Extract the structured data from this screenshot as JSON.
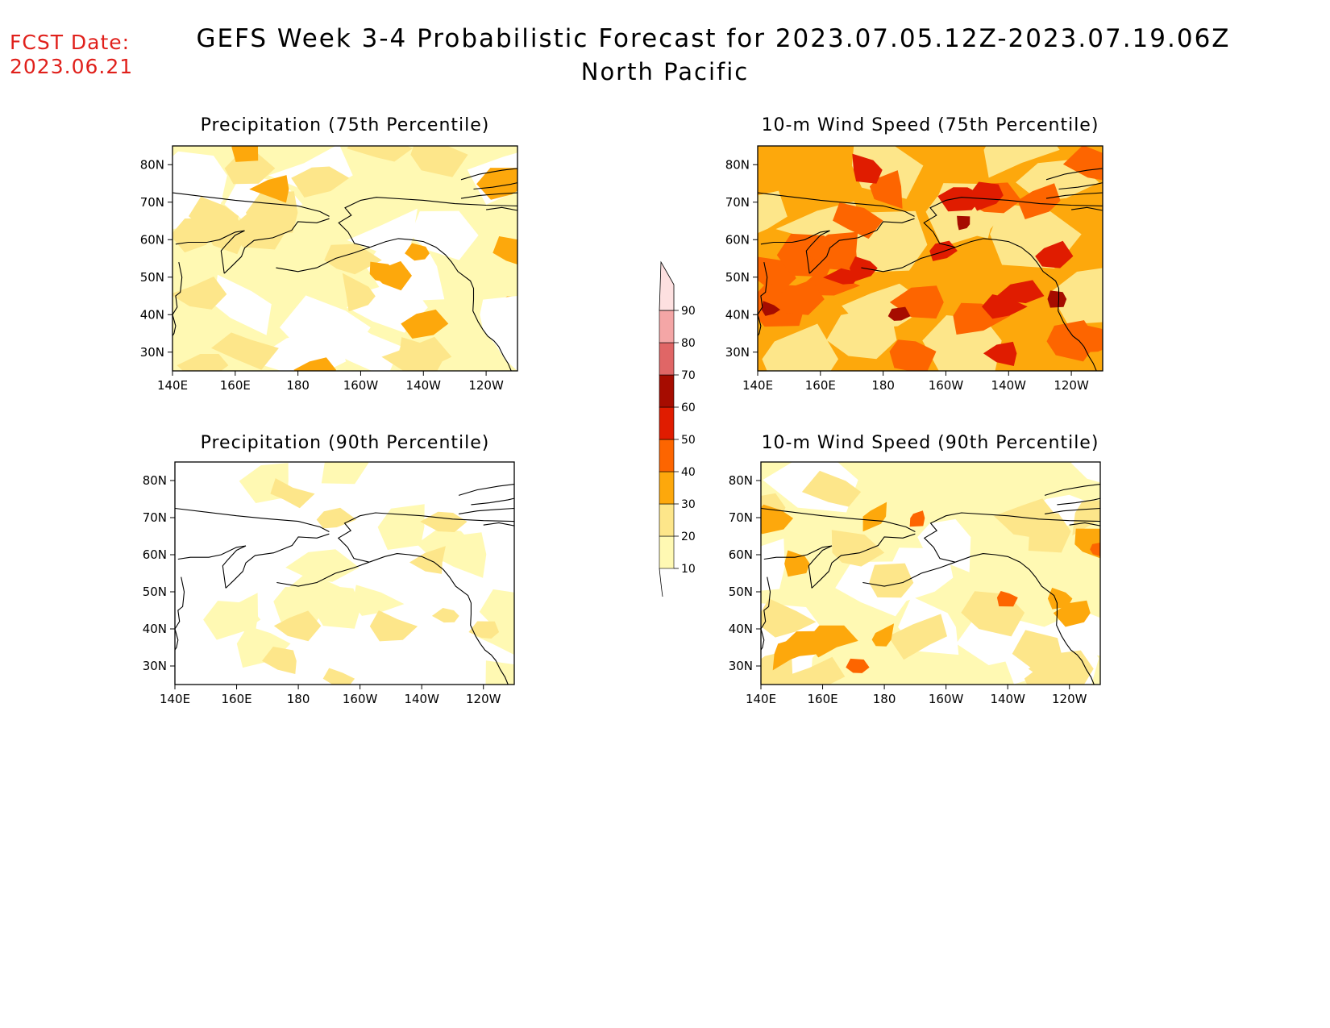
{
  "header": {
    "fcst_label": "FCST Date:",
    "fcst_date": "2023.06.21",
    "title": "GEFS Week 3-4 Probabilistic Forecast for 2023.07.05.12Z-2023.07.19.06Z",
    "subtitle": "North Pacific"
  },
  "panels": [
    {
      "title": "Precipitation (75th Percentile)",
      "variable": "precipitation",
      "percentile": 75,
      "dominant_bin": "10-20",
      "maxima_bin": "30-40"
    },
    {
      "title": "10-m Wind Speed (75th Percentile)",
      "variable": "wind",
      "percentile": 75,
      "dominant_bin": "30-40",
      "maxima_bin": "60-70"
    },
    {
      "title": "Precipitation (90th Percentile)",
      "variable": "precipitation",
      "percentile": 90,
      "dominant_bin": "0-10",
      "maxima_bin": "20-30"
    },
    {
      "title": "10-m Wind Speed (90th Percentile)",
      "variable": "wind",
      "percentile": 90,
      "dominant_bin": "10-20",
      "maxima_bin": "40-50"
    }
  ],
  "axes": {
    "lon_ticks": [
      "140E",
      "160E",
      "180",
      "160W",
      "140W",
      "120W"
    ],
    "lat_ticks": [
      "80N",
      "70N",
      "60N",
      "50N",
      "40N",
      "30N"
    ],
    "lon_range": [
      140,
      250
    ],
    "lat_range": [
      25,
      85
    ]
  },
  "colorbar": {
    "levels": [
      "10",
      "20",
      "30",
      "40",
      "50",
      "60",
      "70",
      "80",
      "90"
    ],
    "colors": [
      "#fff9b3",
      "#fde68a",
      "#fda80c",
      "#fd6500",
      "#e01c00",
      "#a60c00",
      "#e06666",
      "#f4a6a6",
      "#fde0e0"
    ]
  },
  "map_colors": {
    "background": "#ffffff",
    "coastline": "#000000"
  }
}
